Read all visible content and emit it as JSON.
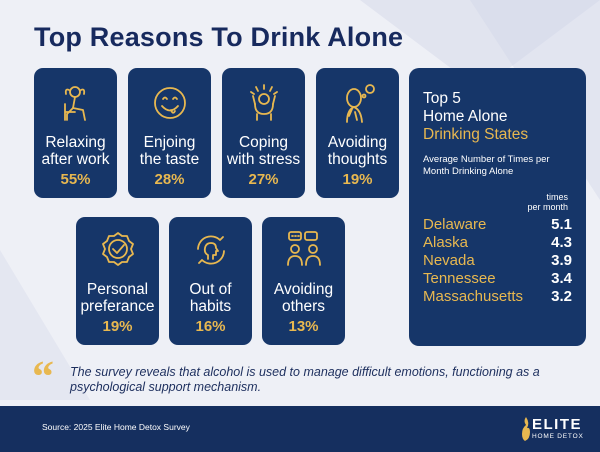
{
  "title": "Top Reasons To Drink Alone",
  "reasons": [
    {
      "label": "Relaxing\nafter work",
      "percent": "55%",
      "icon": "relaxing-person-icon"
    },
    {
      "label": "Enjoing\nthe taste",
      "percent": "28%",
      "icon": "smiley-face-icon"
    },
    {
      "label": "Coping\nwith stress",
      "percent": "27%",
      "icon": "stressed-person-icon"
    },
    {
      "label": "Avoiding\nthoughts",
      "percent": "19%",
      "icon": "thinking-person-icon"
    },
    {
      "label": "Personal\npreferance",
      "percent": "19%",
      "icon": "badge-check-icon"
    },
    {
      "label": "Out of\nhabits",
      "percent": "16%",
      "icon": "habit-head-icon"
    },
    {
      "label": "Avoiding\nothers",
      "percent": "13%",
      "icon": "people-chat-icon"
    }
  ],
  "panel": {
    "title_line1": "Top 5",
    "title_line2": "Home Alone",
    "title_line3": "Drinking States",
    "subtitle": "Average Number of Times per Month Drinking Alone",
    "unit": "times\nper month",
    "states": [
      {
        "state": "Delaware",
        "value": "5.1"
      },
      {
        "state": "Alaska",
        "value": "4.3"
      },
      {
        "state": "Nevada",
        "value": "3.9"
      },
      {
        "state": "Tennessee",
        "value": "3.4"
      },
      {
        "state": "Massachusetts",
        "value": "3.2"
      }
    ]
  },
  "quote": "The survey reveals that alcohol is used to manage difficult emotions, functioning as a psychological support mechanism.",
  "quote_mark": "“",
  "footer": {
    "source": "Source: 2025 Elite Home Detox Survey",
    "logo_word": "ELITE",
    "logo_sub": "HOME DETOX"
  },
  "colors": {
    "navy": "#163669",
    "gold": "#e8b850",
    "background": "#eef0f6"
  }
}
